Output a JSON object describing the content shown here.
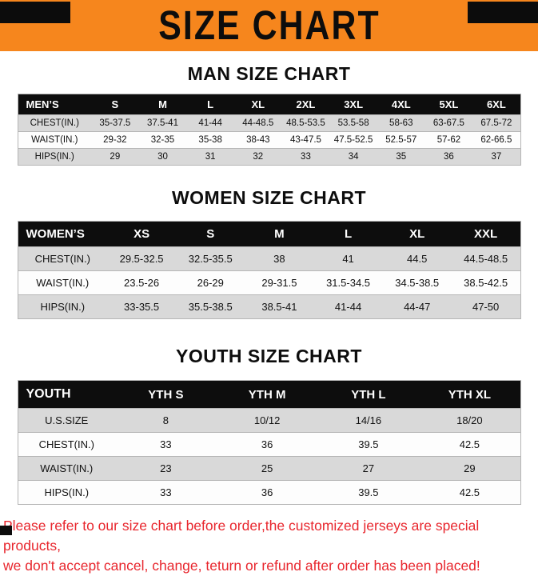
{
  "banner": {
    "title": "SIZE CHART"
  },
  "colors": {
    "orange": "#F6861D",
    "ink": "#111111",
    "row-gray": "#d9d9d9",
    "row-white": "#fdfdfd",
    "red": "#e8262d",
    "border": "#b5b5b5"
  },
  "sections": [
    {
      "heading": "MAN SIZE CHART",
      "table": {
        "header": [
          "MEN’S",
          "S",
          "M",
          "L",
          "XL",
          "2XL",
          "3XL",
          "4XL",
          "5XL",
          "6XL"
        ],
        "rows": [
          [
            "CHEST(IN.)",
            "35-37.5",
            "37.5-41",
            "41-44",
            "44-48.5",
            "48.5-53.5",
            "53.5-58",
            "58-63",
            "63-67.5",
            "67.5-72"
          ],
          [
            "WAIST(IN.)",
            "29-32",
            "32-35",
            "35-38",
            "38-43",
            "43-47.5",
            "47.5-52.5",
            "52.5-57",
            "57-62",
            "62-66.5"
          ],
          [
            "HIPS(IN.)",
            "29",
            "30",
            "31",
            "32",
            "33",
            "34",
            "35",
            "36",
            "37"
          ]
        ]
      }
    },
    {
      "heading": "WOMEN SIZE CHART",
      "table": {
        "header": [
          "WOMEN’S",
          "XS",
          "S",
          "M",
          "L",
          "XL",
          "XXL"
        ],
        "rows": [
          [
            "CHEST(IN.)",
            "29.5-32.5",
            "32.5-35.5",
            "38",
            "41",
            "44.5",
            "44.5-48.5"
          ],
          [
            "WAIST(IN.)",
            "23.5-26",
            "26-29",
            "29-31.5",
            "31.5-34.5",
            "34.5-38.5",
            "38.5-42.5"
          ],
          [
            "HIPS(IN.)",
            "33-35.5",
            "35.5-38.5",
            "38.5-41",
            "41-44",
            "44-47",
            "47-50"
          ]
        ]
      }
    },
    {
      "heading": "YOUTH SIZE CHART",
      "table": {
        "header": [
          "YOUTH",
          "YTH S",
          "YTH M",
          "YTH L",
          "YTH XL"
        ],
        "rows": [
          [
            "U.S.SIZE",
            "8",
            "10/12",
            "14/16",
            "18/20"
          ],
          [
            "CHEST(IN.)",
            "33",
            "36",
            "39.5",
            "42.5"
          ],
          [
            "WAIST(IN.)",
            "23",
            "25",
            "27",
            "29"
          ],
          [
            "HIPS(IN.)",
            "33",
            "36",
            "39.5",
            "42.5"
          ]
        ]
      }
    }
  ],
  "footer": {
    "line1": "Please refer to our size chart before order,the customized jerseys are special products,",
    "line2": "we don't accept cancel, change, teturn or refund after order has been placed!"
  }
}
